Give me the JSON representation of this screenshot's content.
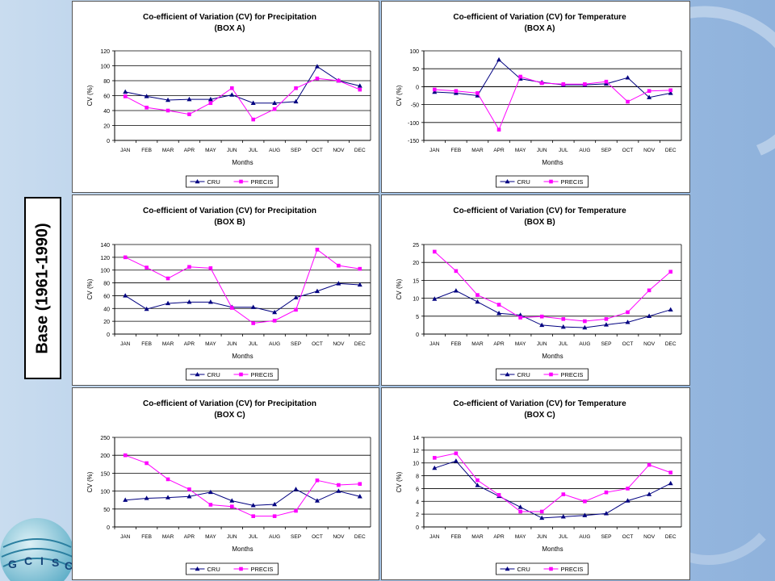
{
  "side_label": "Base (1961-1990)",
  "logo": {
    "letters": [
      "G",
      "C",
      "I",
      "S",
      "C"
    ]
  },
  "chart_data": [
    {
      "id": "precip-a",
      "type": "line",
      "title": "Co-efficient of Variation (CV) for Precipitation",
      "subtitle": "(BOX A)",
      "xlabel": "Months",
      "ylabel": "CV (%)",
      "ylim": [
        0,
        120
      ],
      "yticks": [
        0,
        20,
        40,
        60,
        80,
        100,
        120
      ],
      "grid": true,
      "legend": "bottom",
      "categories": [
        "JAN",
        "FEB",
        "MAR",
        "APR",
        "MAY",
        "JUN",
        "JUL",
        "AUG",
        "SEP",
        "OCT",
        "NOV",
        "DEC"
      ],
      "series": [
        {
          "name": "CRU",
          "color": "#000080",
          "marker": "triangle",
          "values": [
            65,
            59,
            54,
            55,
            55,
            61,
            50,
            50,
            52,
            99,
            80,
            73
          ]
        },
        {
          "name": "PRECIS",
          "color": "#ff00ff",
          "marker": "square",
          "values": [
            59,
            44,
            40,
            35,
            50,
            70,
            28,
            42,
            70,
            83,
            80,
            68
          ]
        }
      ]
    },
    {
      "id": "temp-a",
      "type": "line",
      "title": "Co-efficient of Variation (CV) for Temperature",
      "subtitle": "(BOX A)",
      "xlabel": "Months",
      "ylabel": "CV (%)",
      "ylim": [
        -150,
        100
      ],
      "yticks": [
        -150,
        -100,
        -50,
        0,
        50,
        100
      ],
      "grid": true,
      "legend": "bottom",
      "categories": [
        "JAN",
        "FEB",
        "MAR",
        "APR",
        "MAY",
        "JUN",
        "JUL",
        "AUG",
        "SEP",
        "OCT",
        "NOV",
        "DEC"
      ],
      "series": [
        {
          "name": "CRU",
          "color": "#000080",
          "marker": "triangle",
          "values": [
            -15,
            -18,
            -25,
            75,
            22,
            12,
            5,
            5,
            8,
            25,
            -30,
            -18
          ]
        },
        {
          "name": "PRECIS",
          "color": "#ff00ff",
          "marker": "square",
          "values": [
            -8,
            -12,
            -18,
            -120,
            28,
            10,
            7,
            7,
            14,
            -42,
            -12,
            -10
          ]
        }
      ]
    },
    {
      "id": "precip-b",
      "type": "line",
      "title": "Co-efficient of Variation (CV) for Precipitation",
      "subtitle": "(BOX B)",
      "xlabel": "Months",
      "ylabel": "CV (%)",
      "ylim": [
        0,
        140
      ],
      "yticks": [
        0,
        20,
        40,
        60,
        80,
        100,
        120,
        140
      ],
      "grid": true,
      "legend": "bottom",
      "categories": [
        "JAN",
        "FEB",
        "MAR",
        "APR",
        "MAY",
        "JUN",
        "JUL",
        "AUG",
        "SEP",
        "OCT",
        "NOV",
        "DEC"
      ],
      "series": [
        {
          "name": "CRU",
          "color": "#000080",
          "marker": "triangle",
          "values": [
            60,
            39,
            48,
            50,
            50,
            42,
            42,
            34,
            57,
            67,
            79,
            77
          ]
        },
        {
          "name": "PRECIS",
          "color": "#ff00ff",
          "marker": "square",
          "values": [
            120,
            104,
            87,
            105,
            103,
            41,
            17,
            21,
            38,
            132,
            107,
            102
          ]
        }
      ]
    },
    {
      "id": "temp-b",
      "type": "line",
      "title": "Co-efficient of Variation (CV) for Temperature",
      "subtitle": "(BOX B)",
      "xlabel": "Months",
      "ylabel": "CV (%)",
      "ylim": [
        0,
        25
      ],
      "yticks": [
        0,
        5,
        10,
        15,
        20,
        25
      ],
      "grid": true,
      "legend": "bottom",
      "categories": [
        "JAN",
        "FEB",
        "MAR",
        "APR",
        "MAY",
        "JUN",
        "JUL",
        "AUG",
        "SEP",
        "OCT",
        "NOV",
        "DEC"
      ],
      "series": [
        {
          "name": "CRU",
          "color": "#000080",
          "marker": "triangle",
          "values": [
            9.8,
            12.1,
            9.0,
            5.8,
            5.3,
            2.5,
            2.0,
            1.8,
            2.6,
            3.3,
            5.0,
            6.8
          ]
        },
        {
          "name": "PRECIS",
          "color": "#ff00ff",
          "marker": "square",
          "values": [
            23.0,
            17.6,
            10.9,
            8.2,
            4.6,
            4.9,
            4.2,
            3.6,
            4.2,
            6.1,
            12.2,
            17.4
          ]
        }
      ]
    },
    {
      "id": "precip-c",
      "type": "line",
      "title": "Co-efficient of Variation (CV) for Precipitation",
      "subtitle": "(BOX C)",
      "xlabel": "Months",
      "ylabel": "CV (%)",
      "ylim": [
        0,
        250
      ],
      "yticks": [
        0,
        50,
        100,
        150,
        200,
        250
      ],
      "grid": true,
      "legend": "bottom",
      "categories": [
        "JAN",
        "FEB",
        "MAR",
        "APR",
        "MAY",
        "JUN",
        "JUL",
        "AUG",
        "SEP",
        "OCT",
        "NOV",
        "DEC"
      ],
      "series": [
        {
          "name": "CRU",
          "color": "#000080",
          "marker": "triangle",
          "values": [
            75,
            80,
            82,
            85,
            97,
            73,
            60,
            63,
            105,
            73,
            100,
            85
          ]
        },
        {
          "name": "PRECIS",
          "color": "#ff00ff",
          "marker": "square",
          "values": [
            200,
            178,
            133,
            105,
            62,
            57,
            30,
            30,
            45,
            130,
            117,
            120
          ]
        }
      ]
    },
    {
      "id": "temp-c",
      "type": "line",
      "title": "Co-efficient of Variation (CV) for Temperature",
      "subtitle": "(BOX C)",
      "xlabel": "Months",
      "ylabel": "CV (%)",
      "ylim": [
        0,
        14
      ],
      "yticks": [
        0,
        2,
        4,
        6,
        8,
        10,
        12,
        14
      ],
      "grid": true,
      "legend": "bottom",
      "categories": [
        "JAN",
        "FEB",
        "MAR",
        "APR",
        "MAY",
        "JUN",
        "JUL",
        "AUG",
        "SEP",
        "OCT",
        "NOV",
        "DEC"
      ],
      "series": [
        {
          "name": "CRU",
          "color": "#000080",
          "marker": "triangle",
          "values": [
            9.2,
            10.3,
            6.5,
            4.8,
            3.1,
            1.4,
            1.6,
            1.8,
            2.1,
            4.1,
            5.1,
            6.8
          ]
        },
        {
          "name": "PRECIS",
          "color": "#ff00ff",
          "marker": "square",
          "values": [
            10.8,
            11.5,
            7.3,
            5.0,
            2.4,
            2.4,
            5.1,
            4.0,
            5.4,
            6.0,
            9.7,
            8.5
          ]
        }
      ]
    }
  ]
}
